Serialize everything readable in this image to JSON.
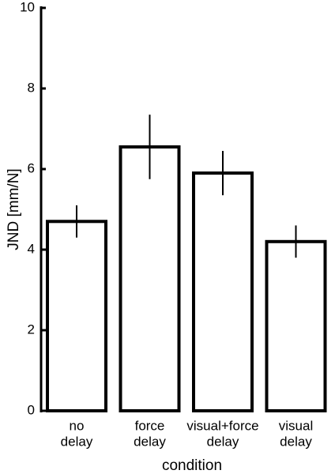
{
  "chart_data": {
    "type": "bar",
    "y_label": "JND [mm/N]",
    "x_label": "condition",
    "categories": [
      [
        "no",
        "delay"
      ],
      [
        "force",
        "delay"
      ],
      [
        "visual+force",
        "delay"
      ],
      [
        "visual",
        "delay"
      ]
    ],
    "values": [
      4.7,
      6.55,
      5.9,
      4.2
    ],
    "errors": [
      0.4,
      0.8,
      0.55,
      0.4
    ],
    "color": "#ffffff",
    "ylim": [
      0,
      10
    ],
    "yticks": [
      0,
      2,
      4,
      6,
      8,
      10
    ]
  }
}
